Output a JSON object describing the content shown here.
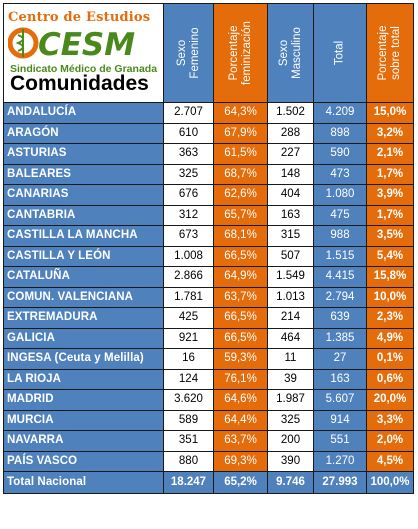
{
  "logo": {
    "top_text": "Centro de Estudios",
    "mark_text": "OCESM",
    "sub_text": "Sindicato Médico de Granada",
    "colors": {
      "orange": "#e46c0a",
      "green": "#4a8a1c"
    }
  },
  "table_title": "Comunidades",
  "headers": [
    {
      "lines": [
        "Sexo",
        "Femenino"
      ]
    },
    {
      "lines": [
        "Porcentaje",
        "feminización"
      ]
    },
    {
      "lines": [
        "Sexo",
        "Masculino"
      ]
    },
    {
      "lines": [
        "Total"
      ]
    },
    {
      "lines": [
        "Porcentaje",
        "sobre total"
      ]
    }
  ],
  "rows": [
    {
      "name": "ANDALUCÍA",
      "fem": "2.707",
      "pct_fem": "64,3%",
      "masc": "1.502",
      "total": "4.209",
      "pct_total": "15,0%"
    },
    {
      "name": "ARAGÓN",
      "fem": "610",
      "pct_fem": "67,9%",
      "masc": "288",
      "total": "898",
      "pct_total": "3,2%"
    },
    {
      "name": "ASTURIAS",
      "fem": "363",
      "pct_fem": "61,5%",
      "masc": "227",
      "total": "590",
      "pct_total": "2,1%"
    },
    {
      "name": "BALEARES",
      "fem": "325",
      "pct_fem": "68,7%",
      "masc": "148",
      "total": "473",
      "pct_total": "1,7%"
    },
    {
      "name": "CANARIAS",
      "fem": "676",
      "pct_fem": "62,6%",
      "masc": "404",
      "total": "1.080",
      "pct_total": "3,9%"
    },
    {
      "name": "CANTABRIA",
      "fem": "312",
      "pct_fem": "65,7%",
      "masc": "163",
      "total": "475",
      "pct_total": "1,7%"
    },
    {
      "name": "CASTILLA LA MANCHA",
      "fem": "673",
      "pct_fem": "68,1%",
      "masc": "315",
      "total": "988",
      "pct_total": "3,5%"
    },
    {
      "name": "CASTILLA Y LEÓN",
      "fem": "1.008",
      "pct_fem": "66,5%",
      "masc": "507",
      "total": "1.515",
      "pct_total": "5,4%"
    },
    {
      "name": "CATALUÑA",
      "fem": "2.866",
      "pct_fem": "64,9%",
      "masc": "1.549",
      "total": "4.415",
      "pct_total": "15,8%"
    },
    {
      "name": "COMUN. VALENCIANA",
      "fem": "1.781",
      "pct_fem": "63,7%",
      "masc": "1.013",
      "total": "2.794",
      "pct_total": "10,0%"
    },
    {
      "name": "EXTREMADURA",
      "fem": "425",
      "pct_fem": "66,5%",
      "masc": "214",
      "total": "639",
      "pct_total": "2,3%"
    },
    {
      "name": "GALICIA",
      "fem": "921",
      "pct_fem": "66,5%",
      "masc": "464",
      "total": "1.385",
      "pct_total": "4,9%"
    },
    {
      "name": "INGESA (Ceuta y Melilla)",
      "fem": "16",
      "pct_fem": "59,3%",
      "masc": "11",
      "total": "27",
      "pct_total": "0,1%"
    },
    {
      "name": "LA RIOJA",
      "fem": "124",
      "pct_fem": "76,1%",
      "masc": "39",
      "total": "163",
      "pct_total": "0,6%"
    },
    {
      "name": "MADRID",
      "fem": "3.620",
      "pct_fem": "64,6%",
      "masc": "1.987",
      "total": "5.607",
      "pct_total": "20,0%"
    },
    {
      "name": "MURCIA",
      "fem": "589",
      "pct_fem": "64,4%",
      "masc": "325",
      "total": "914",
      "pct_total": "3,3%"
    },
    {
      "name": "NAVARRA",
      "fem": "351",
      "pct_fem": "63,7%",
      "masc": "200",
      "total": "551",
      "pct_total": "2,0%"
    },
    {
      "name": "PAÍS VASCO",
      "fem": "880",
      "pct_fem": "69,3%",
      "masc": "390",
      "total": "1.270",
      "pct_total": "4,5%"
    }
  ],
  "footer": {
    "name": "Total Nacional",
    "fem": "18.247",
    "pct_fem": "65,2%",
    "masc": "9.746",
    "total": "27.993",
    "pct_total": "100,0%"
  }
}
